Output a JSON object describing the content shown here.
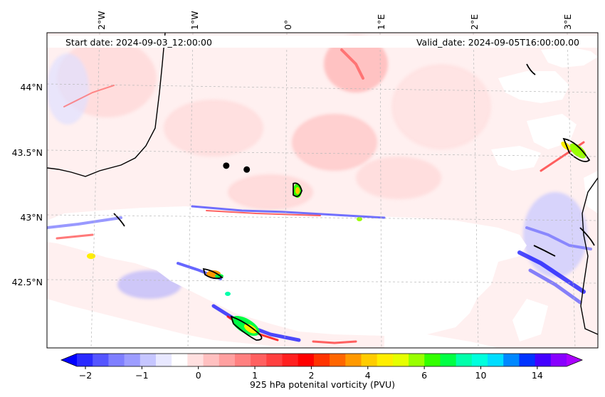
{
  "map": {
    "start_date": "Start date: 2024-09-03_12:00:00",
    "valid_date": "Valid_date: 2024-09-05T16:00:00.00",
    "lon_labels": [
      "2°W",
      "1°W",
      "0°",
      "1°E",
      "2°E",
      "3°E"
    ],
    "lat_labels": [
      "44°N",
      "43.5°N",
      "43°N",
      "42.5°N"
    ],
    "markers": [
      {
        "name": "marker-1",
        "lon": -0.65,
        "lat": 43.38
      },
      {
        "name": "marker-2",
        "lon": -0.43,
        "lat": 43.35
      }
    ]
  },
  "colorbar": {
    "label": "925 hPa potenital vorticity (PVU)",
    "ticks": [
      "−2",
      "−1",
      "0",
      "1",
      "2",
      "4",
      "6",
      "10",
      "14"
    ],
    "colors": [
      "#0000ff",
      "#2a2aff",
      "#5555ff",
      "#7f7fff",
      "#9d9dff",
      "#c6c6ff",
      "#e8e8ff",
      "#ffffff",
      "#ffe0e0",
      "#ffc0c0",
      "#ffa0a0",
      "#ff8080",
      "#ff6060",
      "#ff4040",
      "#ff2020",
      "#ff0000",
      "#ff3300",
      "#ff6600",
      "#ff9900",
      "#ffcc00",
      "#ffee00",
      "#e6ff00",
      "#99ff00",
      "#33ff00",
      "#00ff44",
      "#00ffaa",
      "#00ffdd",
      "#00ddff",
      "#0088ff",
      "#0033ff",
      "#4400ff",
      "#8800ff",
      "#aa00ff"
    ]
  }
}
